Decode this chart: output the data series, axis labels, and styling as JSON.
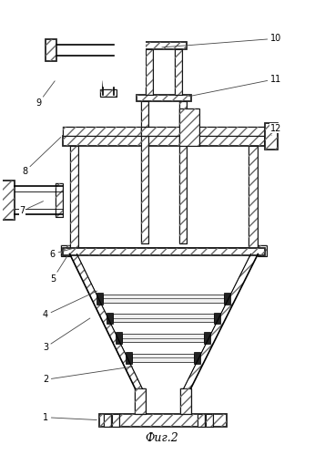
{
  "fig_label": "Фиг.2",
  "bg_color": "#ffffff",
  "line_color": "#000000",
  "fig_width": 3.57,
  "fig_height": 4.99,
  "dpi": 100
}
